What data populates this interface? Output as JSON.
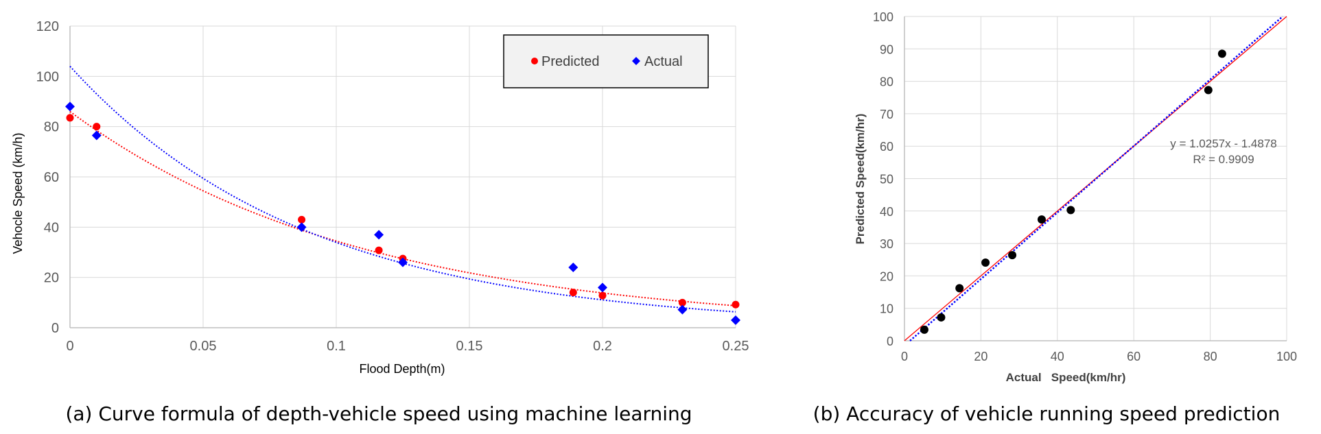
{
  "chart_data": [
    {
      "type": "scatter",
      "caption": "(a) Curve formula of depth-vehicle speed using machine learning",
      "title": "",
      "xlabel": "Flood Depth(m)",
      "ylabel": "Vehocle Speed (km/h)",
      "xlim": [
        0,
        0.25
      ],
      "ylim": [
        0,
        120
      ],
      "xticks": [
        0,
        0.05,
        0.1,
        0.15,
        0.2,
        0.25
      ],
      "xtick_labels": [
        "0",
        "0.05",
        "0.1",
        "0.15",
        "0.2",
        "0.25"
      ],
      "yticks": [
        0,
        20,
        40,
        60,
        80,
        100,
        120
      ],
      "grid": true,
      "legend": "top-right",
      "series": [
        {
          "name": "Predicted",
          "marker": "circle",
          "color": "#ff0000",
          "x": [
            0,
            0.01,
            0.087,
            0.116,
            0.125,
            0.189,
            0.2,
            0.23,
            0.25
          ],
          "y": [
            83.5,
            80,
            43,
            30.8,
            27.5,
            14,
            12.8,
            10,
            9.2
          ],
          "trendline": {
            "type": "exponential",
            "a": 86,
            "b": -9.14,
            "style": "dotted"
          }
        },
        {
          "name": "Actual",
          "marker": "diamond",
          "color": "#0000ff",
          "x": [
            0,
            0.01,
            0.087,
            0.116,
            0.125,
            0.189,
            0.2,
            0.23,
            0.25
          ],
          "y": [
            88,
            76.5,
            40,
            37,
            26,
            24,
            16,
            7.2,
            3
          ],
          "trendline": {
            "type": "exponential",
            "a": 104,
            "b": -11.2,
            "style": "dotted"
          }
        }
      ]
    },
    {
      "type": "scatter",
      "caption": "(b) Accuracy of vehicle running speed prediction",
      "title": "",
      "xlabel": "Actual   Speed(km/hr)",
      "ylabel": "Predicted Speed(km/hr)",
      "xlim": [
        0,
        100
      ],
      "ylim": [
        0,
        100
      ],
      "xticks": [
        0,
        20,
        40,
        60,
        80,
        100
      ],
      "yticks": [
        0,
        10,
        20,
        30,
        40,
        50,
        60,
        70,
        80,
        90,
        100
      ],
      "grid": true,
      "equation": "y = 1.0257x - 1.4878",
      "r_squared": "R² = 0.9909",
      "series": [
        {
          "name": "Speed",
          "marker": "circle",
          "color": "#000000",
          "x": [
            5.2,
            9.6,
            14.4,
            21.2,
            28.2,
            35.9,
            43.5,
            79.5,
            83.1
          ],
          "y": [
            3.4,
            7.2,
            16.2,
            24.1,
            26.4,
            37.4,
            40.3,
            77.3,
            88.5
          ]
        }
      ],
      "lines": [
        {
          "name": "identity",
          "slope": 1,
          "intercept": 0,
          "color": "#ff0000",
          "style": "solid"
        },
        {
          "name": "regression",
          "slope": 1.0257,
          "intercept": -1.4878,
          "color": "#0000ff",
          "style": "dotted"
        }
      ]
    }
  ]
}
